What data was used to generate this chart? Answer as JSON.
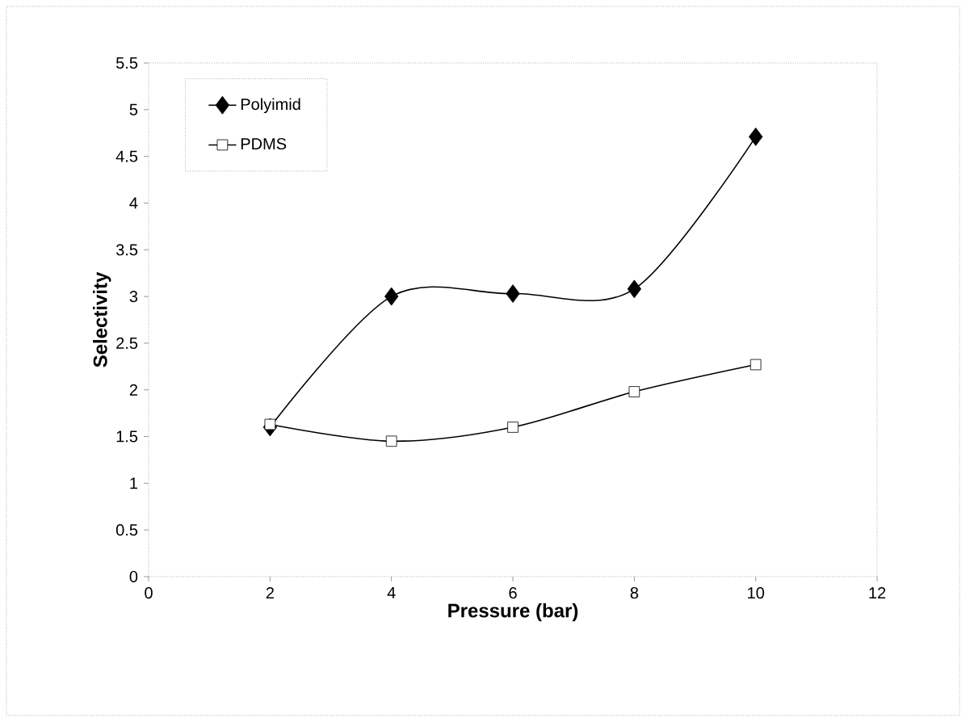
{
  "chart_data": {
    "type": "line",
    "xlabel": "Pressure (bar)",
    "ylabel": "Selectivity",
    "xlim": [
      0,
      12
    ],
    "xticks": [
      0,
      2,
      4,
      6,
      8,
      10,
      12
    ],
    "ylim": [
      0,
      5.5
    ],
    "yticks": [
      0,
      0.5,
      1,
      1.5,
      2,
      2.5,
      3,
      3.5,
      4,
      4.5,
      5,
      5.5
    ],
    "legend": "top left",
    "grid": false,
    "series": [
      {
        "name": "Polyimid",
        "color": "#000000",
        "marker": "diamond",
        "x": [
          2,
          4,
          6,
          8,
          10
        ],
        "values": [
          1.6,
          3.0,
          3.03,
          3.08,
          4.71
        ]
      },
      {
        "name": "PDMS",
        "color": "#000000",
        "marker": "square",
        "x": [
          2,
          4,
          6,
          8,
          10
        ],
        "values": [
          1.63,
          1.45,
          1.6,
          1.98,
          2.27
        ]
      }
    ]
  }
}
